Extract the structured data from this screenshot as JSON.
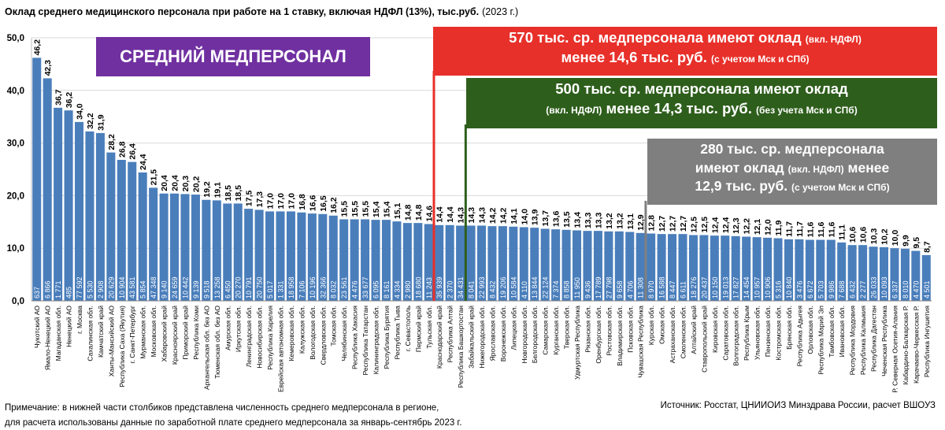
{
  "chart_data": {
    "type": "bar",
    "title": "Оклад среднего медицинского персонала при работе на 1 ставку, включая НДФЛ (13%), тыс.руб.",
    "title_year": "(2023 г.)",
    "xlabel": "",
    "ylabel": "",
    "ylim": [
      0,
      50
    ],
    "yticks": [
      "0,0",
      "10,0",
      "20,0",
      "30,0",
      "40,0",
      "50,0"
    ],
    "grid": true,
    "bar_color": "#4a7ebb",
    "categories": [
      "Чукотский АО",
      "Ямало-Ненецкий АО",
      "Магаданская обл.",
      "Ненецкий АО",
      "г. Москва",
      "Сахалинская обл.",
      "Камчатский край",
      "Ханты-Мансийский АО",
      "Республика Саха (Якутия)",
      "г. Санкт-Петербург",
      "Мурманская обл.",
      "Московская обл.",
      "Хабаровский край",
      "Красноярский край",
      "Приморский край",
      "Республика Коми",
      "Архангельская обл. без АО",
      "Тюменская обл. без АО",
      "Амурская обл.",
      "Иркутская обл.",
      "Ленинградская обл.",
      "Новосибирская обл.",
      "Республика Карелия",
      "Еврейская автономная обл.",
      "Кемеровская обл.",
      "Калужская обл.",
      "Вологодская обл.",
      "Свердловская обл.",
      "Томская обл.",
      "Челябинская обл.",
      "Республика Хакасия",
      "Республика Татарстан",
      "Калининградская обл.",
      "Республика Бурятия",
      "Республика Тыва",
      "г. Севастополь",
      "Пермский край",
      "Тульская обл.",
      "Краснодарский край",
      "Республика Алтай",
      "Республика Башкортостан",
      "Забайкальский край",
      "Нижегородская обл.",
      "Ярославская обл.",
      "Воронежская обл.",
      "Липецкая обл.",
      "Новгородская обл.",
      "Белгородская обл.",
      "Самарская обл.",
      "Курганская обл.",
      "Тверская обл.",
      "Удмуртская Республика",
      "Рязанская обл.",
      "Оренбургская обл.",
      "Ростовская обл.",
      "Владимирская обл.",
      "Псковская обл.",
      "Чувашская Республика",
      "Курская обл.",
      "Омская обл.",
      "Астраханская обл.",
      "Смоленская обл.",
      "Алтайский край",
      "Ставропольский край",
      "Кировская обл.",
      "Саратовская обл.",
      "Волгоградская обл.",
      "Республика Крым",
      "Ульяновская обл.",
      "Пензенская обл.",
      "Костромская обл.",
      "Брянская обл.",
      "Республика Адыгея",
      "Орловская обл.",
      "Республика Марий Эл",
      "Тамбовская обл.",
      "Ивановская обл.",
      "Республика Мордовия",
      "Республика Калмыкия",
      "Республика Дагестан",
      "Чеченская Республика",
      "Р. Северная Осетия-Алания",
      "Кабардино-Балкарская Р.",
      "Карачаево-Черкесская Р.",
      "Республика Ингушетия"
    ],
    "values": [
      46.2,
      42.3,
      36.7,
      36.2,
      34.0,
      32.2,
      31.9,
      28.2,
      26.8,
      26.4,
      24.4,
      21.5,
      20.4,
      20.4,
      20.3,
      20.2,
      19.2,
      19.1,
      18.5,
      18.5,
      17.5,
      17.3,
      17.0,
      17.0,
      17.0,
      16.8,
      16.6,
      16.5,
      16.2,
      15.5,
      15.5,
      15.5,
      15.4,
      15.4,
      15.1,
      14.8,
      14.8,
      14.6,
      14.4,
      14.4,
      14.3,
      14.3,
      14.3,
      14.2,
      14.2,
      14.1,
      14.0,
      13.9,
      13.7,
      13.6,
      13.5,
      13.4,
      13.3,
      13.3,
      13.2,
      13.2,
      13.1,
      12.9,
      12.8,
      12.7,
      12.7,
      12.7,
      12.5,
      12.5,
      12.4,
      12.4,
      12.3,
      12.2,
      12.1,
      12.0,
      11.9,
      11.7,
      11.7,
      11.6,
      11.6,
      11.6,
      11.1,
      10.6,
      10.6,
      10.3,
      10.2,
      10.0,
      9.9,
      9.5,
      8.7
    ],
    "value_labels": [
      "46,2",
      "42,3",
      "36,7",
      "36,2",
      "34,0",
      "32,2",
      "31,9",
      "28,2",
      "26,8",
      "26,4",
      "24,4",
      "21,5",
      "20,4",
      "20,4",
      "20,3",
      "20,2",
      "19,2",
      "19,1",
      "18,5",
      "18,5",
      "17,5",
      "17,3",
      "17,0",
      "17,0",
      "17,0",
      "16,8",
      "16,6",
      "16,5",
      "16,2",
      "15,5",
      "15,5",
      "15,5",
      "15,4",
      "15,4",
      "15,1",
      "14,8",
      "14,8",
      "14,6",
      "14,4",
      "14,4",
      "14,3",
      "14,3",
      "14,3",
      "14,2",
      "14,2",
      "14,1",
      "14,0",
      "13,9",
      "13,7",
      "13,6",
      "13,5",
      "13,4",
      "13,3",
      "13,3",
      "13,2",
      "13,2",
      "13,1",
      "12,9",
      "12,8",
      "12,7",
      "12,7",
      "12,7",
      "12,5",
      "12,5",
      "12,4",
      "12,4",
      "12,3",
      "12,2",
      "12,1",
      "12,0",
      "11,9",
      "11,7",
      "11,7",
      "11,6",
      "11,6",
      "11,6",
      "11,1",
      "10,6",
      "10,6",
      "10,3",
      "10,2",
      "10,0",
      "9,9",
      "9,5",
      "8,7"
    ],
    "headcount_labels": [
      "637",
      "6 866",
      "1 771",
      "485",
      "77 592",
      "5 530",
      "2 908",
      "20 629",
      "10 904",
      "43 581",
      "5 854",
      "47 348",
      "9 140",
      "24 659",
      "10 442",
      "9 139",
      "9 518",
      "13 258",
      "6 450",
      "20 270",
      "10 791",
      "20 750",
      "5 017",
      "1 331",
      "18 958",
      "7 106",
      "10 196",
      "32 366",
      "8 032",
      "23 561",
      "4 476",
      "33 677",
      "6 095",
      "8 161",
      "4 334",
      "2 980",
      "18 680",
      "11 243",
      "35 939",
      "2 370",
      "34 431",
      "8 041",
      "22 993",
      "8 432",
      "19 206",
      "10 584",
      "4 110",
      "13 844",
      "22 124",
      "7 374",
      "8 858",
      "11 950",
      "9 436",
      "17 789",
      "27 798",
      "9 658",
      "4 706",
      "11 308",
      "8 970",
      "16 588",
      "8 447",
      "6 611",
      "18 276",
      "20 437",
      "10 150",
      "19 013",
      "17 827",
      "14 454",
      "10 957",
      "10 906",
      "5 316",
      "10 840",
      "3 476",
      "6 672",
      "5 703",
      "9 986",
      "7 688",
      "6 432",
      "2 277",
      "26 033",
      "10 093",
      "6 337",
      "8 010",
      "4 470",
      "4 501"
    ],
    "annotations": {
      "group_label": "СРЕДНИЙ МЕДПЕРСОНАЛ",
      "red": {
        "color": "#e8302a",
        "line1_main": "570 тыс. ср. медперсонала имеют оклад",
        "line1_small": "(вкл. НДФЛ)",
        "line2_main": "менее 14,6 тыс. руб.",
        "line2_small": "(с учетом Мск и СПб)",
        "after_category": "Тульская обл."
      },
      "green": {
        "color": "#2e5e1c",
        "line1_main": "500 тыс. ср. медперсонала имеют оклад",
        "line2_small_a": "(вкл. НДФЛ)",
        "line2_main": "менее 14,3 тыс. руб.",
        "line2_small_b": "(без учета Мск и СПб)",
        "after_category": "Республика Башкортостан"
      },
      "gray": {
        "color": "#7f7f7f",
        "line1_main": "280 тыс. ср. медперсонала",
        "line2_main_a": "имеют оклад",
        "line2_small": "(вкл. НДФЛ)",
        "line2_main_b": "менее",
        "line3_main": "12,9 тыс. руб.",
        "line3_small": "(с учетом Мск и СПб)",
        "after_category": "Чувашская Республика"
      }
    }
  },
  "footer": {
    "note_line1": "Примечание: в нижней части столбиков представлена численность среднего медперсонала в регионе,",
    "note_line2": "для расчета использованы данные по заработной плате среднего медперсонала за январь-сентябрь 2023 г.",
    "source": "Источник: Росстат, ЦНИИОИЗ Минздрава России, расчет ВШОУЗ"
  }
}
